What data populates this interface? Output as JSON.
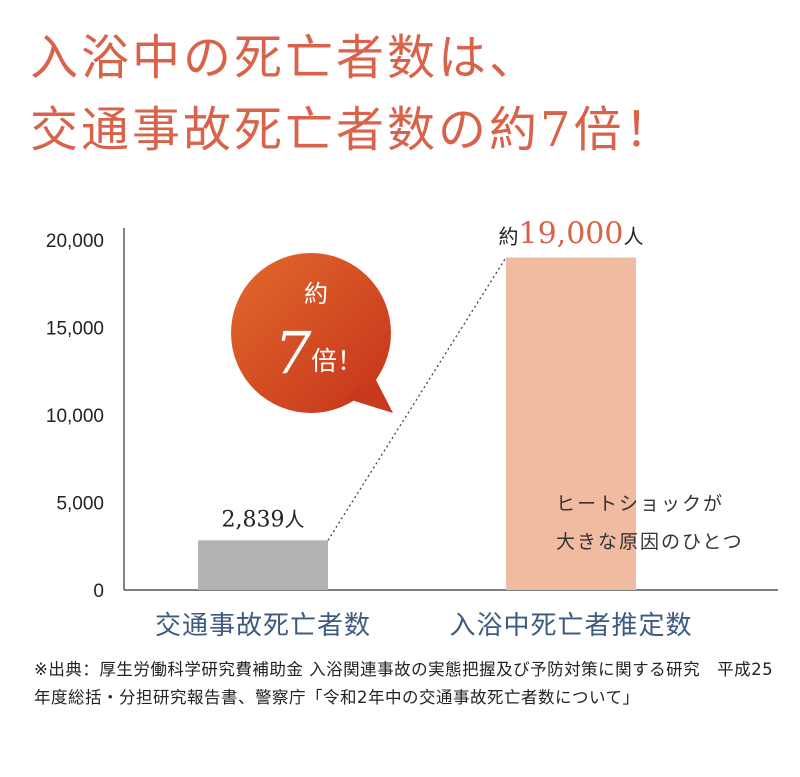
{
  "title": {
    "line1": "入浴中の死亡者数は、",
    "line2": "交通事故死亡者数の約7倍！"
  },
  "badge": {
    "prefix": "約",
    "number": "7",
    "suffix": "倍！"
  },
  "annotation": {
    "line1": "ヒートショックが",
    "line2": "大きな原因のひとつ"
  },
  "footnote": "※出典：厚生労働科学研究費補助金 入浴関連事故の実態把握及び予防対策に関する研究　平成25年度総括・分担研究報告書、警察庁「令和2年中の交通事故死亡者数について」",
  "colors": {
    "title": "#d9624a",
    "bar_traffic": "#b3b3b3",
    "bar_bath": "#f0bba0",
    "badge": "#d84e22",
    "category_text": "#3d5a80"
  },
  "chart_data": {
    "type": "bar",
    "categories": [
      "交通事故死亡者数",
      "入浴中死亡者推定数"
    ],
    "values": [
      2839,
      19000
    ],
    "value_labels": [
      {
        "prefix": "",
        "number": "2,839",
        "unit": "人"
      },
      {
        "prefix": "約",
        "number": "19,000",
        "unit": "人"
      }
    ],
    "ylim": [
      0,
      20000
    ],
    "yticks": [
      0,
      5000,
      10000,
      15000,
      20000
    ],
    "ytick_labels": [
      "0",
      "5,000",
      "10,000",
      "15,000",
      "20,000"
    ],
    "title": "",
    "xlabel": "",
    "ylabel": ""
  }
}
